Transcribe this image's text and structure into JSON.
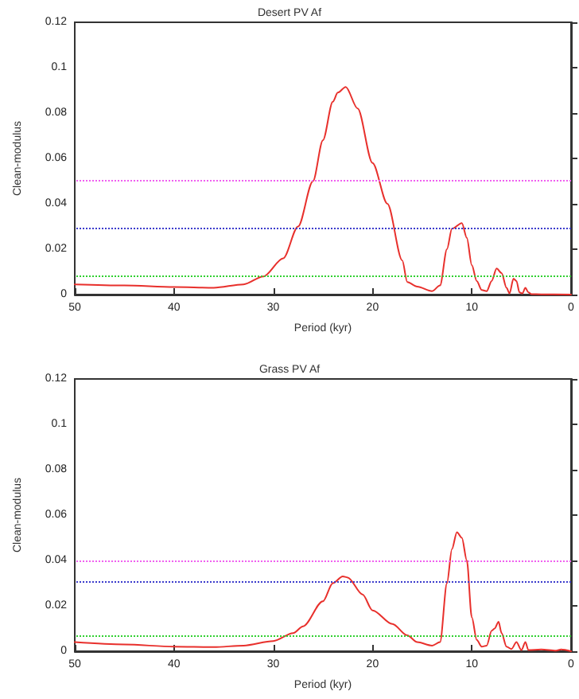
{
  "chart_data": [
    {
      "type": "line",
      "title": "Desert PV Af",
      "xlabel": "Period (kyr)",
      "ylabel": "Clean-modulus",
      "xlim": [
        50,
        0
      ],
      "ylim": [
        0,
        0.12
      ],
      "xticks": [
        50,
        40,
        30,
        20,
        10,
        0
      ],
      "yticks": [
        0,
        0.02,
        0.04,
        0.06,
        0.08,
        0.1,
        0.12
      ],
      "grid": false,
      "marker": "none",
      "line_style": "solid",
      "x": [
        50,
        45,
        40,
        36,
        33,
        31,
        29,
        27.5,
        26,
        25,
        24,
        23.5,
        22.7,
        21.5,
        20,
        18.5,
        17,
        16.5,
        15.5,
        14,
        13.2,
        12.5,
        12,
        11,
        10.5,
        10,
        9.5,
        9,
        8.5,
        8,
        7.5,
        7,
        6.5,
        6.2,
        5.8,
        5.5,
        5.2,
        4.9,
        4.6,
        4.3,
        4,
        3,
        0
      ],
      "series": [
        {
          "color": "#e8302c",
          "values": [
            0.0045,
            0.004,
            0.0033,
            0.003,
            0.0045,
            0.008,
            0.016,
            0.03,
            0.05,
            0.068,
            0.085,
            0.089,
            0.0915,
            0.082,
            0.058,
            0.04,
            0.015,
            0.0055,
            0.0035,
            0.0015,
            0.004,
            0.02,
            0.029,
            0.0315,
            0.025,
            0.013,
            0.006,
            0.002,
            0.0015,
            0.006,
            0.0115,
            0.0095,
            0.003,
            0.0005,
            0.007,
            0.006,
            0.001,
            0.0005,
            0.003,
            0.001,
            0.0002,
            0.0001,
            0
          ]
        }
      ],
      "ref_lines": [
        {
          "axis": "y",
          "value": 0.0505,
          "color": "#f060f0",
          "line_style": "dotted"
        },
        {
          "axis": "y",
          "value": 0.0295,
          "color": "#3c3ccc",
          "line_style": "dotted"
        },
        {
          "axis": "y",
          "value": 0.0085,
          "color": "#30d030",
          "line_style": "dotted"
        }
      ]
    },
    {
      "type": "line",
      "title": "Grass PV Af",
      "xlabel": "Period (kyr)",
      "ylabel": "Clean-modulus",
      "xlim": [
        50,
        0
      ],
      "ylim": [
        0,
        0.12
      ],
      "xticks": [
        50,
        40,
        30,
        20,
        10,
        0
      ],
      "yticks": [
        0,
        0.02,
        0.04,
        0.06,
        0.08,
        0.1,
        0.12
      ],
      "grid": false,
      "marker": "none",
      "line_style": "solid",
      "x": [
        50,
        45,
        40,
        36,
        33,
        30,
        28,
        27,
        25,
        24,
        23,
        22.5,
        21,
        20,
        18,
        16.5,
        15.5,
        14,
        13.2,
        12.5,
        12,
        11.5,
        11,
        10.5,
        10,
        9.5,
        9,
        8.5,
        8,
        7.7,
        7.3,
        7,
        6.5,
        6,
        5.5,
        5,
        4.6,
        4.3,
        3,
        1.5,
        1,
        0
      ],
      "series": [
        {
          "color": "#e8302c",
          "values": [
            0.004,
            0.003,
            0.002,
            0.0018,
            0.0025,
            0.0045,
            0.008,
            0.011,
            0.022,
            0.03,
            0.033,
            0.0325,
            0.025,
            0.018,
            0.012,
            0.007,
            0.004,
            0.0025,
            0.004,
            0.03,
            0.045,
            0.0525,
            0.05,
            0.04,
            0.015,
            0.005,
            0.002,
            0.0025,
            0.009,
            0.01,
            0.013,
            0.008,
            0.002,
            0.001,
            0.004,
            0.0005,
            0.004,
            0.0005,
            0.0008,
            0.0003,
            0.0008,
            0
          ]
        }
      ],
      "ref_lines": [
        {
          "axis": "y",
          "value": 0.0395,
          "color": "#f060f0",
          "line_style": "dotted"
        },
        {
          "axis": "y",
          "value": 0.0305,
          "color": "#3c3ccc",
          "line_style": "dotted"
        },
        {
          "axis": "y",
          "value": 0.0065,
          "color": "#30d030",
          "line_style": "dotted"
        }
      ]
    }
  ]
}
